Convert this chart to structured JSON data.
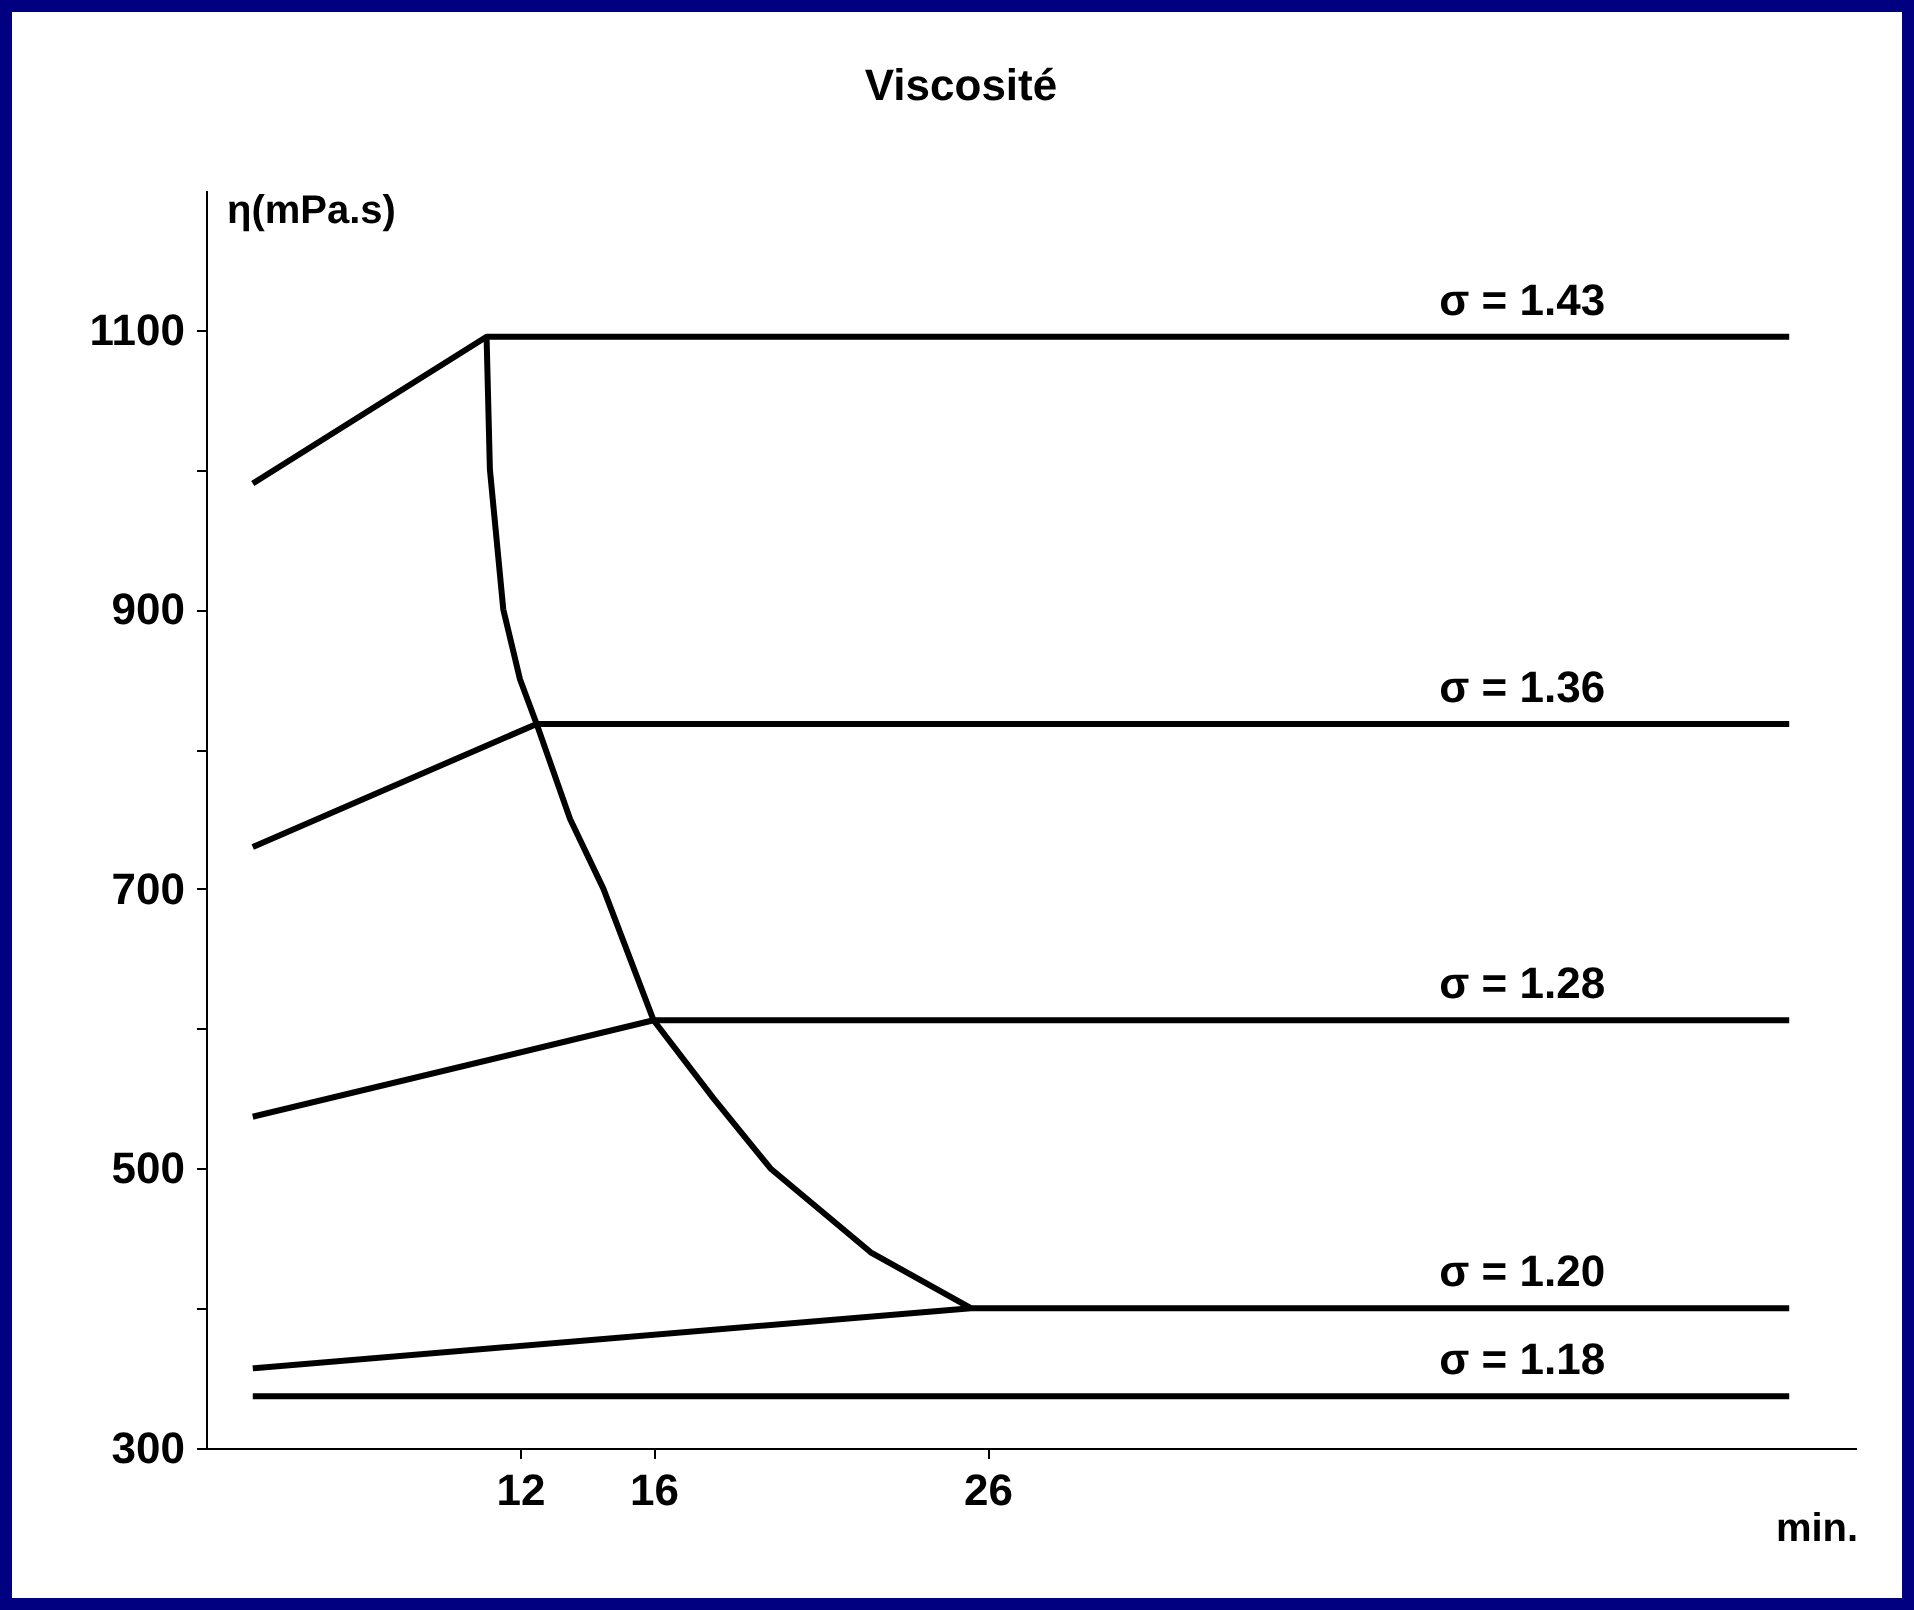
{
  "chart_data": {
    "type": "line",
    "title": "Viscosité",
    "xlabel": "min.",
    "ylabel": "η(mPa.s)",
    "xlim": [
      2.6,
      52
    ],
    "xticks": [
      12,
      16,
      26
    ],
    "ylim": [
      300,
      1200
    ],
    "yticks": [
      300,
      {
        "value": 400,
        "label": null
      },
      500,
      {
        "value": 600,
        "label": null
      },
      700,
      {
        "value": 800,
        "label": null
      },
      900,
      {
        "value": 1000,
        "label": null
      },
      1100
    ],
    "grid": false,
    "legend": false,
    "marker": "none",
    "line_style": "solid",
    "series": [
      {
        "name": "σ = 1.43",
        "color": "#000000",
        "x": [
          4,
          11,
          50
        ],
        "values": [
          990,
          1095,
          1095
        ]
      },
      {
        "name": "σ = 1.36",
        "color": "#000000",
        "x": [
          4,
          12.5,
          50
        ],
        "values": [
          730,
          818,
          818
        ]
      },
      {
        "name": "σ = 1.28",
        "color": "#000000",
        "x": [
          4,
          16,
          50
        ],
        "values": [
          537,
          606,
          606
        ]
      },
      {
        "name": "σ = 1.20",
        "color": "#000000",
        "x": [
          4,
          25.5,
          50
        ],
        "values": [
          357,
          400,
          400
        ]
      },
      {
        "name": "σ = 1.18",
        "color": "#000000",
        "x": [
          4,
          50
        ],
        "values": [
          337,
          337
        ]
      },
      {
        "color": "#000000",
        "x": [
          11,
          11.1,
          11.5,
          12,
          12.5,
          13.5,
          14.5,
          16,
          17.8,
          19.5,
          22.5,
          25.5
        ],
        "values": [
          1095,
          1000,
          900,
          850,
          818,
          750,
          700,
          606,
          550,
          500,
          440,
          400
        ]
      }
    ]
  }
}
